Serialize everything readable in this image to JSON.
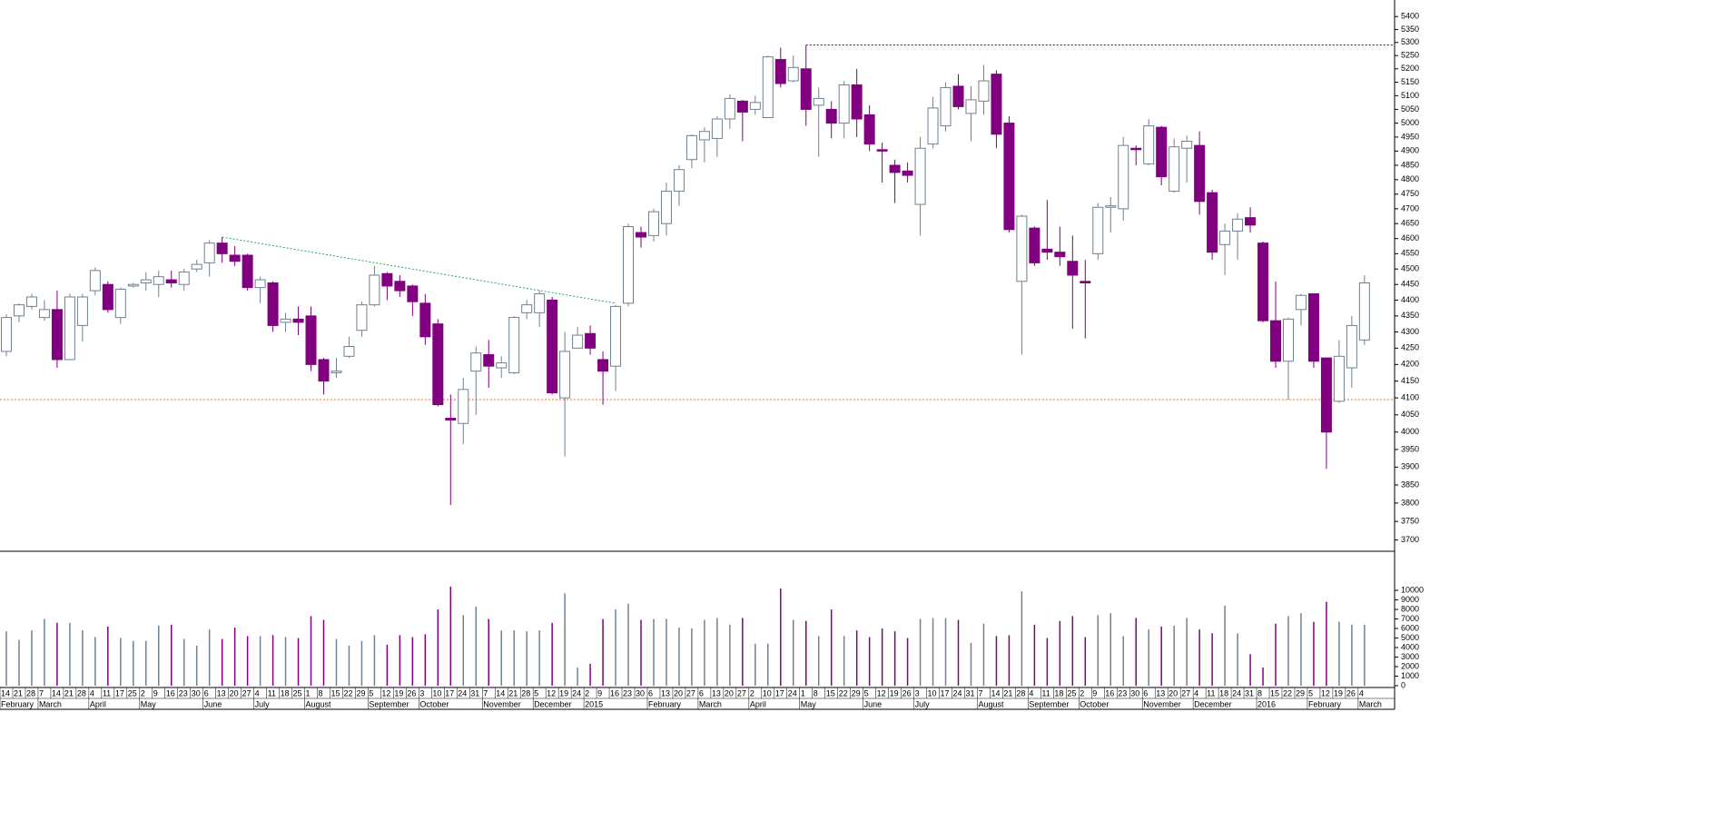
{
  "chart_data": [
    {
      "type": "candlestick",
      "log_scale": true,
      "up_color": "#ffffff",
      "up_edge": "#708090",
      "down_color": "#800080",
      "categories": [
        "14",
        "21",
        "28",
        "7",
        "14",
        "21",
        "28",
        "4",
        "11",
        "17",
        "25",
        "2",
        "9",
        "16",
        "23",
        "30",
        "6",
        "13",
        "20",
        "27",
        "4",
        "11",
        "18",
        "25",
        "1",
        "8",
        "15",
        "22",
        "29",
        "5",
        "12",
        "19",
        "26",
        "3",
        "10",
        "17",
        "24",
        "31",
        "7",
        "14",
        "21",
        "28",
        "5",
        "12",
        "19",
        "24",
        "2",
        "9",
        "16",
        "23",
        "30",
        "6",
        "13",
        "20",
        "27",
        "6",
        "13",
        "20",
        "27",
        "2",
        "10",
        "17",
        "24",
        "1",
        "8",
        "15",
        "22",
        "29",
        "5",
        "12",
        "19",
        "26",
        "3",
        "10",
        "17",
        "24",
        "31",
        "7",
        "14",
        "21",
        "28",
        "4",
        "11",
        "18",
        "25",
        "2",
        "9",
        "16",
        "23",
        "30",
        "6",
        "13",
        "20",
        "27",
        "4",
        "11",
        "18",
        "24",
        "31",
        "8",
        "15",
        "22",
        "29",
        "5",
        "12",
        "19",
        "26",
        "4"
      ],
      "months": [
        "February",
        null,
        null,
        "March",
        null,
        null,
        null,
        "April",
        null,
        null,
        null,
        "May",
        null,
        null,
        null,
        null,
        "June",
        null,
        null,
        null,
        "July",
        null,
        null,
        null,
        "August",
        null,
        null,
        null,
        null,
        "September",
        null,
        null,
        null,
        "October",
        null,
        null,
        null,
        null,
        "November",
        null,
        null,
        null,
        "December",
        null,
        null,
        null,
        "2015",
        null,
        null,
        null,
        null,
        "February",
        null,
        null,
        null,
        "March",
        null,
        null,
        null,
        "April",
        null,
        null,
        null,
        "May",
        null,
        null,
        null,
        null,
        "June",
        null,
        null,
        null,
        "July",
        null,
        null,
        null,
        null,
        "August",
        null,
        null,
        null,
        "September",
        null,
        null,
        null,
        "October",
        null,
        null,
        null,
        null,
        "November",
        null,
        null,
        null,
        "December",
        null,
        null,
        null,
        null,
        "2016",
        null,
        null,
        null,
        "February",
        null,
        null,
        null,
        "March"
      ],
      "open": [
        4240,
        4350,
        4380,
        4345,
        4370,
        4215,
        4320,
        4430,
        4450,
        4345,
        4445,
        4455,
        4450,
        4465,
        4450,
        4500,
        4520,
        4585,
        4545,
        4545,
        4440,
        4455,
        4330,
        4340,
        4350,
        4215,
        4175,
        4225,
        4305,
        4385,
        4485,
        4460,
        4445,
        4390,
        4325,
        4040,
        4025,
        4180,
        4230,
        4190,
        4175,
        4360,
        4360,
        4400,
        4100,
        4250,
        4295,
        4215,
        4195,
        4390,
        4620,
        4610,
        4650,
        4760,
        4870,
        4940,
        4945,
        5015,
        5080,
        5050,
        5020,
        5235,
        5155,
        5200,
        5065,
        5050,
        5000,
        5140,
        5030,
        4905,
        4850,
        4830,
        4715,
        4925,
        4990,
        5135,
        5035,
        5080,
        5180,
        5000,
        4460,
        4635,
        4565,
        4555,
        4525,
        4460,
        4550,
        4705,
        4700,
        4910,
        4855,
        4985,
        4760,
        4910,
        4920,
        4755,
        4580,
        4625,
        4670,
        4585,
        4335,
        4210,
        4370,
        4420,
        4220,
        4090,
        4190,
        4275
      ],
      "high": [
        4355,
        4390,
        4420,
        4400,
        4430,
        4420,
        4420,
        4505,
        4460,
        4440,
        4455,
        4490,
        4495,
        4495,
        4500,
        4530,
        4595,
        4605,
        4575,
        4550,
        4475,
        4460,
        4360,
        4380,
        4380,
        4220,
        4220,
        4285,
        4395,
        4510,
        4490,
        4480,
        4450,
        4420,
        4340,
        4110,
        4160,
        4255,
        4275,
        4225,
        4350,
        4400,
        4430,
        4410,
        4300,
        4315,
        4320,
        4240,
        4385,
        4650,
        4640,
        4700,
        4790,
        4850,
        4960,
        4985,
        5025,
        5105,
        5085,
        5100,
        5250,
        5280,
        5250,
        5290,
        5130,
        5080,
        5155,
        5200,
        5065,
        4930,
        4870,
        4860,
        4950,
        5095,
        5150,
        5180,
        5135,
        5215,
        5195,
        5025,
        4680,
        4640,
        4730,
        4640,
        4610,
        4530,
        4720,
        4740,
        4950,
        4920,
        5015,
        4990,
        4945,
        4955,
        4970,
        4765,
        4650,
        4685,
        4705,
        4590,
        4460,
        4345,
        4420,
        4420,
        4215,
        4275,
        4350,
        4480
      ],
      "low": [
        4225,
        4330,
        4370,
        4335,
        4190,
        4215,
        4270,
        4415,
        4360,
        4325,
        4440,
        4430,
        4410,
        4440,
        4430,
        4490,
        4475,
        4520,
        4510,
        4430,
        4390,
        4300,
        4300,
        4290,
        4180,
        4110,
        4160,
        4220,
        4285,
        4380,
        4400,
        4410,
        4350,
        4260,
        4075,
        3795,
        3965,
        4050,
        4130,
        4160,
        4170,
        4340,
        4315,
        4110,
        3930,
        4255,
        4230,
        4080,
        4120,
        4380,
        4570,
        4590,
        4610,
        4710,
        4840,
        4860,
        4880,
        4980,
        4935,
        5030,
        5020,
        5130,
        5150,
        4990,
        4880,
        4945,
        4945,
        4950,
        4900,
        4790,
        4720,
        4790,
        4610,
        4910,
        4970,
        5050,
        4935,
        5030,
        4910,
        4620,
        4230,
        4510,
        4530,
        4510,
        4310,
        4280,
        4530,
        4620,
        4660,
        4850,
        4850,
        4780,
        4755,
        4790,
        4680,
        4530,
        4480,
        4530,
        4620,
        4330,
        4190,
        4095,
        4320,
        4190,
        3895,
        4085,
        4130,
        4260
      ],
      "close": [
        4345,
        4385,
        4410,
        4370,
        4215,
        4410,
        4410,
        4495,
        4370,
        4435,
        4450,
        4465,
        4475,
        4455,
        4490,
        4515,
        4585,
        4550,
        4525,
        4440,
        4465,
        4320,
        4340,
        4330,
        4200,
        4150,
        4180,
        4255,
        4385,
        4480,
        4445,
        4430,
        4395,
        4285,
        4080,
        4035,
        4125,
        4235,
        4195,
        4205,
        4345,
        4385,
        4420,
        4115,
        4240,
        4290,
        4250,
        4180,
        4380,
        4640,
        4605,
        4690,
        4760,
        4835,
        4955,
        4970,
        5015,
        5090,
        5040,
        5075,
        5245,
        5145,
        5205,
        5050,
        5090,
        5000,
        5140,
        5015,
        4925,
        4900,
        4825,
        4815,
        4910,
        5055,
        5130,
        5060,
        5085,
        5155,
        4960,
        4630,
        4675,
        4520,
        4555,
        4540,
        4480,
        4455,
        4705,
        4710,
        4920,
        4905,
        4990,
        4810,
        4915,
        4935,
        4725,
        4555,
        4625,
        4665,
        4645,
        4335,
        4210,
        4340,
        4415,
        4210,
        4000,
        4225,
        4320,
        4455
      ],
      "ylim": [
        3670,
        5465
      ],
      "yticks": [
        3700,
        3750,
        3800,
        3850,
        3900,
        3950,
        4000,
        4050,
        4100,
        4150,
        4200,
        4250,
        4300,
        4350,
        4400,
        4450,
        4500,
        4550,
        4600,
        4650,
        4700,
        4750,
        4800,
        4850,
        4900,
        4950,
        5000,
        5050,
        5100,
        5150,
        5200,
        5250,
        5300,
        5350,
        5400
      ],
      "resistance": 5290,
      "resistance_color": "#0000cc",
      "support": 4095,
      "support_color": "#ff6600",
      "trendline": {
        "start": 17,
        "end": 48,
        "values": [
          4605,
          4390
        ],
        "color": "#22aa55"
      }
    },
    {
      "type": "volume",
      "values": [
        5700,
        4800,
        5800,
        7000,
        6600,
        6600,
        5800,
        5100,
        6200,
        5000,
        4700,
        4700,
        6300,
        6400,
        4900,
        4200,
        5900,
        4900,
        6100,
        5200,
        5200,
        5300,
        5100,
        5000,
        7300,
        6900,
        4900,
        4200,
        4700,
        5300,
        4300,
        5300,
        5100,
        5400,
        8000,
        10400,
        7400,
        8300,
        7000,
        5800,
        5800,
        5700,
        5800,
        6600,
        9700,
        1900,
        2300,
        7000,
        8000,
        8600,
        6900,
        7000,
        7000,
        6100,
        6000,
        6900,
        7100,
        6400,
        7100,
        4400,
        4400,
        10200,
        6900,
        6800,
        5200,
        8000,
        5200,
        5800,
        5100,
        6000,
        5700,
        5000,
        7000,
        7100,
        7100,
        6900,
        4500,
        6500,
        5200,
        5300,
        9900,
        6400,
        5000,
        6800,
        7300,
        5100,
        7400,
        7600,
        5200,
        7100,
        5900,
        6200,
        6300,
        7100,
        5900,
        5500,
        8400,
        5500,
        3300,
        1900,
        6500,
        7300,
        7600,
        6700,
        8800,
        6700,
        6400,
        6400
      ],
      "up_color": "#708090",
      "down_color": "#800080",
      "ylim": [
        0,
        14100
      ],
      "yticks": [
        0,
        1000,
        2000,
        3000,
        4000,
        5000,
        6000,
        7000,
        8000,
        9000,
        10000
      ]
    }
  ]
}
